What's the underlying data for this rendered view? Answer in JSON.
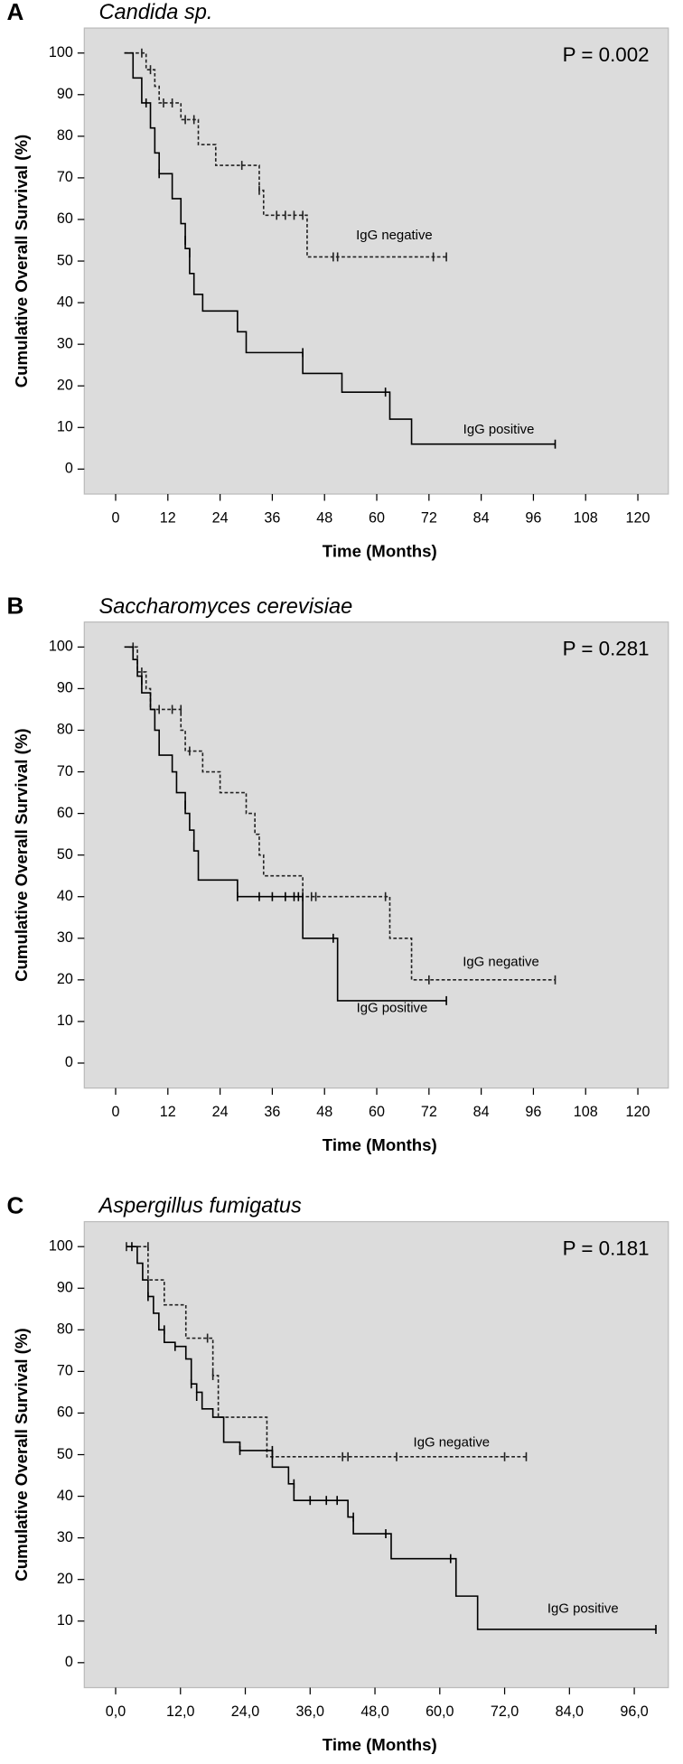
{
  "chart_data": [
    {
      "type": "step",
      "letter": "A",
      "title": "Candida sp.",
      "annotation": "P = 0.002",
      "xlabel": "Time (Months)",
      "ylabel": "Cumulative Overall Survival (%)",
      "xlim": [
        -7.2,
        127
      ],
      "ylim": [
        -6,
        106
      ],
      "xticks": [
        0,
        12,
        24,
        36,
        48,
        60,
        72,
        84,
        96,
        108,
        120
      ],
      "yticks": [
        0,
        10,
        20,
        30,
        40,
        50,
        60,
        70,
        80,
        90,
        100
      ],
      "series": [
        {
          "name": "IgG negative",
          "color": "#222222",
          "dash": true,
          "x": [
            2,
            7,
            9,
            10,
            15,
            19,
            23,
            33,
            34,
            44,
            76
          ],
          "values": [
            100,
            96,
            92,
            88,
            84,
            78,
            73,
            67,
            61,
            51,
            51
          ],
          "censor_x": [
            6,
            8,
            11,
            13,
            16,
            18,
            29,
            33,
            37,
            39,
            41,
            43,
            50,
            51,
            73,
            76
          ],
          "censor_values": [
            100,
            96,
            88,
            88,
            84,
            84,
            73,
            67,
            61,
            61,
            61,
            61,
            51,
            51,
            51,
            51
          ]
        },
        {
          "name": "IgG positive",
          "color": "#000000",
          "dash": false,
          "x": [
            2,
            4,
            6,
            8,
            9,
            10,
            13,
            15,
            16,
            17,
            18,
            20,
            28,
            30,
            43,
            52,
            63,
            68,
            101
          ],
          "values": [
            100,
            94,
            88,
            82,
            76,
            71,
            65,
            59,
            53,
            47,
            42,
            38,
            33,
            28,
            23,
            18.5,
            12,
            6,
            6
          ],
          "censor_x": [
            7,
            10,
            16,
            17,
            43,
            62,
            101
          ],
          "censor_values": [
            88,
            71,
            55,
            52,
            28,
            18.5,
            6
          ]
        }
      ]
    },
    {
      "type": "step",
      "letter": "B",
      "title": "Saccharomyces cerevisiae",
      "annotation": "P = 0.281",
      "xlabel": "Time (Months)",
      "ylabel": "Cumulative Overall Survival (%)",
      "xlim": [
        -7.2,
        127
      ],
      "ylim": [
        -6,
        106
      ],
      "xticks": [
        0,
        12,
        24,
        36,
        48,
        60,
        72,
        84,
        96,
        108,
        120
      ],
      "yticks": [
        0,
        10,
        20,
        30,
        40,
        50,
        60,
        70,
        80,
        90,
        100
      ],
      "series": [
        {
          "name": "IgG negative",
          "color": "#222222",
          "dash": true,
          "x": [
            3,
            5,
            7,
            8,
            15,
            16,
            20,
            24,
            30,
            32,
            33,
            34,
            43,
            63,
            68,
            101
          ],
          "values": [
            100,
            94,
            90,
            85,
            80,
            75,
            70,
            65,
            60,
            55,
            50,
            45,
            40,
            30,
            20,
            20
          ],
          "censor_x": [
            4,
            6,
            10,
            13,
            15,
            17,
            45,
            46,
            62,
            72,
            101
          ],
          "censor_values": [
            100,
            94,
            85,
            85,
            85,
            75,
            40,
            40,
            40,
            20,
            20
          ]
        },
        {
          "name": "IgG positive",
          "color": "#000000",
          "dash": false,
          "x": [
            2,
            4,
            5,
            6,
            8,
            9,
            10,
            13,
            14,
            16,
            17,
            18,
            19,
            28,
            43,
            51,
            76
          ],
          "values": [
            100,
            97,
            93,
            89,
            85,
            80,
            74,
            70,
            65,
            60,
            56,
            51,
            44,
            40,
            30,
            15,
            15
          ],
          "censor_x": [
            6,
            16,
            18,
            28,
            33,
            36,
            39,
            41,
            42,
            43,
            50,
            76
          ],
          "censor_values": [
            92,
            62,
            52,
            40,
            40,
            40,
            40,
            40,
            40,
            40,
            30,
            15
          ]
        }
      ]
    },
    {
      "type": "step",
      "letter": "C",
      "title": "Aspergillus fumigatus",
      "annotation": "P = 0.181",
      "xlabel": "Time (Months)",
      "ylabel": "Cumulative Overall Survival (%)",
      "xlim": [
        -5.8,
        102.3
      ],
      "ylim": [
        -6,
        106
      ],
      "xticks": [
        {
          "value": 0,
          "label": "0,0"
        },
        {
          "value": 12,
          "label": "12,0"
        },
        {
          "value": 24,
          "label": "24,0"
        },
        {
          "value": 36,
          "label": "36,0"
        },
        {
          "value": 48,
          "label": "48,0"
        },
        {
          "value": 60,
          "label": "60,0"
        },
        {
          "value": 72,
          "label": "72,0"
        },
        {
          "value": 84,
          "label": "84,0"
        },
        {
          "value": 96,
          "label": "96,0"
        }
      ],
      "yticks": [
        0,
        10,
        20,
        30,
        40,
        50,
        60,
        70,
        80,
        90,
        100
      ],
      "series": [
        {
          "name": "IgG negative",
          "color": "#222222",
          "dash": true,
          "x": [
            2,
            6,
            9,
            13,
            18,
            19,
            28,
            76
          ],
          "values": [
            100,
            92,
            86,
            78,
            69,
            59,
            49.5,
            49.5
          ],
          "censor_x": [
            2,
            6,
            17,
            18,
            29,
            42,
            43,
            52,
            72,
            76
          ],
          "censor_values": [
            100,
            100,
            78,
            69,
            50,
            49.5,
            49.5,
            49.5,
            49.5,
            49.5
          ]
        },
        {
          "name": "IgG positive",
          "color": "#000000",
          "dash": false,
          "x": [
            2,
            4,
            5,
            6,
            7,
            8,
            9,
            11,
            13,
            14,
            15,
            16,
            18,
            20,
            23,
            29,
            32,
            33,
            43,
            44,
            51,
            63,
            67,
            100
          ],
          "values": [
            100,
            96,
            92,
            88,
            84,
            80,
            77,
            76,
            73,
            67,
            65,
            61,
            59,
            53,
            51,
            47,
            43,
            39,
            35,
            31,
            25,
            16,
            8,
            8
          ],
          "censor_x": [
            3,
            6,
            9,
            11,
            14,
            15,
            23,
            29,
            33,
            36,
            39,
            41,
            44,
            50,
            62,
            100
          ],
          "censor_values": [
            100,
            88,
            80,
            76,
            67,
            64,
            51,
            51,
            43,
            39,
            39,
            39,
            35,
            31,
            25,
            8
          ]
        }
      ]
    }
  ]
}
